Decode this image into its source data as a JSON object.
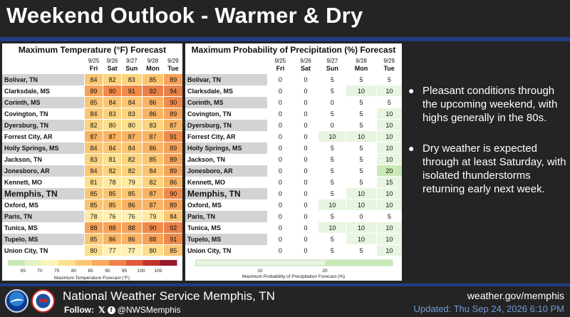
{
  "title": "Weekend Outlook - Warmer & Dry",
  "temp_panel": {
    "title": "Maximum Temperature (°F) Forecast",
    "dates": [
      "9/25",
      "9/26",
      "9/27",
      "9/28",
      "9/29"
    ],
    "days": [
      "Fri",
      "Sat",
      "Sun",
      "Mon",
      "Tue"
    ],
    "legend_ticks": [
      "65",
      "70",
      "75",
      "80",
      "85",
      "90",
      "95",
      "100",
      "105"
    ],
    "legend_label": "Maximum Temperature Forecast (°F)"
  },
  "precip_panel": {
    "title": "Maximum Probability of Precipitation (%) Forecast",
    "dates": [
      "9/25",
      "9/26",
      "9/27",
      "9/28",
      "9/29"
    ],
    "days": [
      "Fri",
      "Sat",
      "Sun",
      "Mon",
      "Tue"
    ],
    "legend_ticks": [
      "10",
      "20"
    ],
    "legend_label": "Maximum Probability of Precipitation Forecast (%)"
  },
  "rows": [
    {
      "city": "Bolivar, TN",
      "temps": [
        84,
        82,
        83,
        85,
        89
      ],
      "pops": [
        0,
        0,
        5,
        5,
        5
      ]
    },
    {
      "city": "Clarksdale, MS",
      "temps": [
        89,
        90,
        91,
        92,
        94
      ],
      "pops": [
        0,
        0,
        5,
        10,
        10
      ]
    },
    {
      "city": "Corinth, MS",
      "temps": [
        85,
        84,
        84,
        86,
        90
      ],
      "pops": [
        0,
        0,
        0,
        5,
        5
      ]
    },
    {
      "city": "Covington, TN",
      "temps": [
        84,
        83,
        83,
        86,
        89
      ],
      "pops": [
        0,
        0,
        5,
        5,
        10
      ]
    },
    {
      "city": "Dyersburg, TN",
      "temps": [
        82,
        80,
        80,
        83,
        87
      ],
      "pops": [
        0,
        0,
        0,
        5,
        10
      ]
    },
    {
      "city": "Forrest City, AR",
      "temps": [
        87,
        87,
        87,
        87,
        91
      ],
      "pops": [
        0,
        0,
        10,
        10,
        10
      ]
    },
    {
      "city": "Holly Springs, MS",
      "temps": [
        84,
        84,
        84,
        86,
        89
      ],
      "pops": [
        0,
        0,
        5,
        5,
        10
      ]
    },
    {
      "city": "Jackson, TN",
      "temps": [
        83,
        81,
        82,
        85,
        89
      ],
      "pops": [
        0,
        0,
        5,
        5,
        10
      ]
    },
    {
      "city": "Jonesboro, AR",
      "temps": [
        84,
        82,
        82,
        84,
        89
      ],
      "pops": [
        0,
        0,
        5,
        5,
        20
      ]
    },
    {
      "city": "Kennett, MO",
      "temps": [
        81,
        78,
        79,
        82,
        86
      ],
      "pops": [
        0,
        0,
        5,
        5,
        15
      ]
    },
    {
      "city": "Memphis, TN",
      "temps": [
        85,
        85,
        85,
        87,
        90
      ],
      "pops": [
        0,
        0,
        5,
        10,
        10
      ],
      "big": true
    },
    {
      "city": "Oxford, MS",
      "temps": [
        85,
        85,
        86,
        87,
        89
      ],
      "pops": [
        0,
        0,
        10,
        10,
        10
      ]
    },
    {
      "city": "Paris, TN",
      "temps": [
        78,
        76,
        76,
        79,
        84
      ],
      "pops": [
        0,
        0,
        5,
        0,
        5
      ]
    },
    {
      "city": "Tunica, MS",
      "temps": [
        88,
        88,
        88,
        90,
        92
      ],
      "pops": [
        0,
        0,
        10,
        10,
        10
      ]
    },
    {
      "city": "Tupelo, MS",
      "temps": [
        85,
        86,
        86,
        88,
        91
      ],
      "pops": [
        0,
        0,
        5,
        10,
        10
      ]
    },
    {
      "city": "Union City, TN",
      "temps": [
        80,
        77,
        77,
        80,
        85
      ],
      "pops": [
        0,
        0,
        5,
        5,
        10
      ]
    }
  ],
  "bullets": [
    "Pleasant conditions through the upcoming weekend, with highs generally in the 80s.",
    "Dry weather is expected through at least Saturday, with isolated thunderstorms returning early next week."
  ],
  "footer": {
    "office": "National Weather Service Memphis, TN",
    "follow_label": "Follow:",
    "handle": "@NWSMemphis",
    "website": "weather.gov/memphis",
    "updated": "Updated: Thu Sep 24, 2026 6:10 PM"
  },
  "colors": {
    "background": "#242424",
    "accent_blue": "#1f3d82",
    "precip_10": "#e8f5e0",
    "precip_20": "#c8e8b5"
  }
}
